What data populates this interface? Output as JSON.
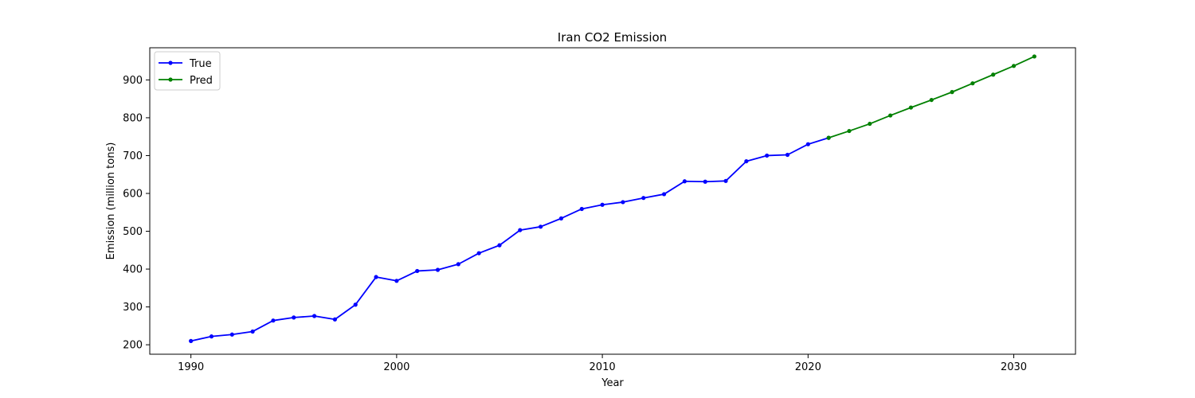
{
  "chart_data": {
    "type": "line",
    "title": "Iran CO2 Emission",
    "xlabel": "Year",
    "ylabel": "Emission (million tons)",
    "xlim": [
      1988,
      2033
    ],
    "ylim": [
      175,
      985
    ],
    "xticks": [
      1990,
      2000,
      2010,
      2020,
      2030
    ],
    "yticks": [
      200,
      300,
      400,
      500,
      600,
      700,
      800,
      900
    ],
    "grid": false,
    "legend": "top-left",
    "series": [
      {
        "name": "True",
        "color": "#0000ff",
        "x": [
          1990,
          1991,
          1992,
          1993,
          1994,
          1995,
          1996,
          1997,
          1998,
          1999,
          2000,
          2001,
          2002,
          2003,
          2004,
          2005,
          2006,
          2007,
          2008,
          2009,
          2010,
          2011,
          2012,
          2013,
          2014,
          2015,
          2016,
          2017,
          2018,
          2019,
          2020,
          2021
        ],
        "values": [
          210,
          222,
          227,
          235,
          264,
          272,
          276,
          267,
          306,
          379,
          369,
          395,
          398,
          413,
          442,
          463,
          503,
          512,
          534,
          559,
          570,
          577,
          588,
          598,
          632,
          631,
          633,
          685,
          700,
          702,
          730,
          747
        ]
      },
      {
        "name": "Pred",
        "color": "#008000",
        "x": [
          2021,
          2022,
          2023,
          2024,
          2025,
          2026,
          2027,
          2028,
          2029,
          2030,
          2031
        ],
        "values": [
          747,
          765,
          784,
          806,
          827,
          847,
          868,
          891,
          914,
          937,
          962
        ]
      }
    ]
  }
}
